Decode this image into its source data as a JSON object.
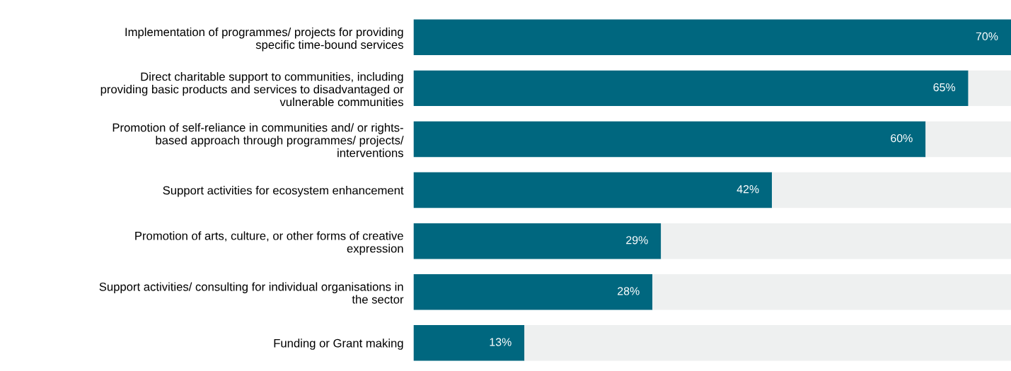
{
  "chart_data": {
    "type": "bar",
    "orientation": "horizontal",
    "stacked": true,
    "categories": [
      "Implementation of programmes/ projects for providing\nspecific time-bound services",
      "Direct charitable support to communities, including\nproviding basic products and services to disadvantaged or\nvulnerable communities",
      "Promotion of self-reliance in communities and/ or rights-\nbased approach through programmes/ projects/\ninterventions",
      "Support activities for ecosystem enhancement",
      "Promotion of arts, culture, or other forms of creative\nexpression",
      "Support activities/ consulting for individual organisations in\nthe sector",
      "Funding or Grant making"
    ],
    "series": [
      {
        "color": "#00677f",
        "values": [
          70,
          65,
          60,
          42,
          29,
          28,
          13
        ],
        "value_labels": [
          "70%",
          "65%",
          "60%",
          "42%",
          "29%",
          "28%",
          "13%"
        ]
      },
      {
        "color": "#eef0f0",
        "values": [
          0,
          5,
          10,
          28,
          41,
          42,
          57
        ]
      }
    ],
    "xlim": [
      0,
      70
    ],
    "tick_labels": "y",
    "grid": false,
    "legend": false
  }
}
